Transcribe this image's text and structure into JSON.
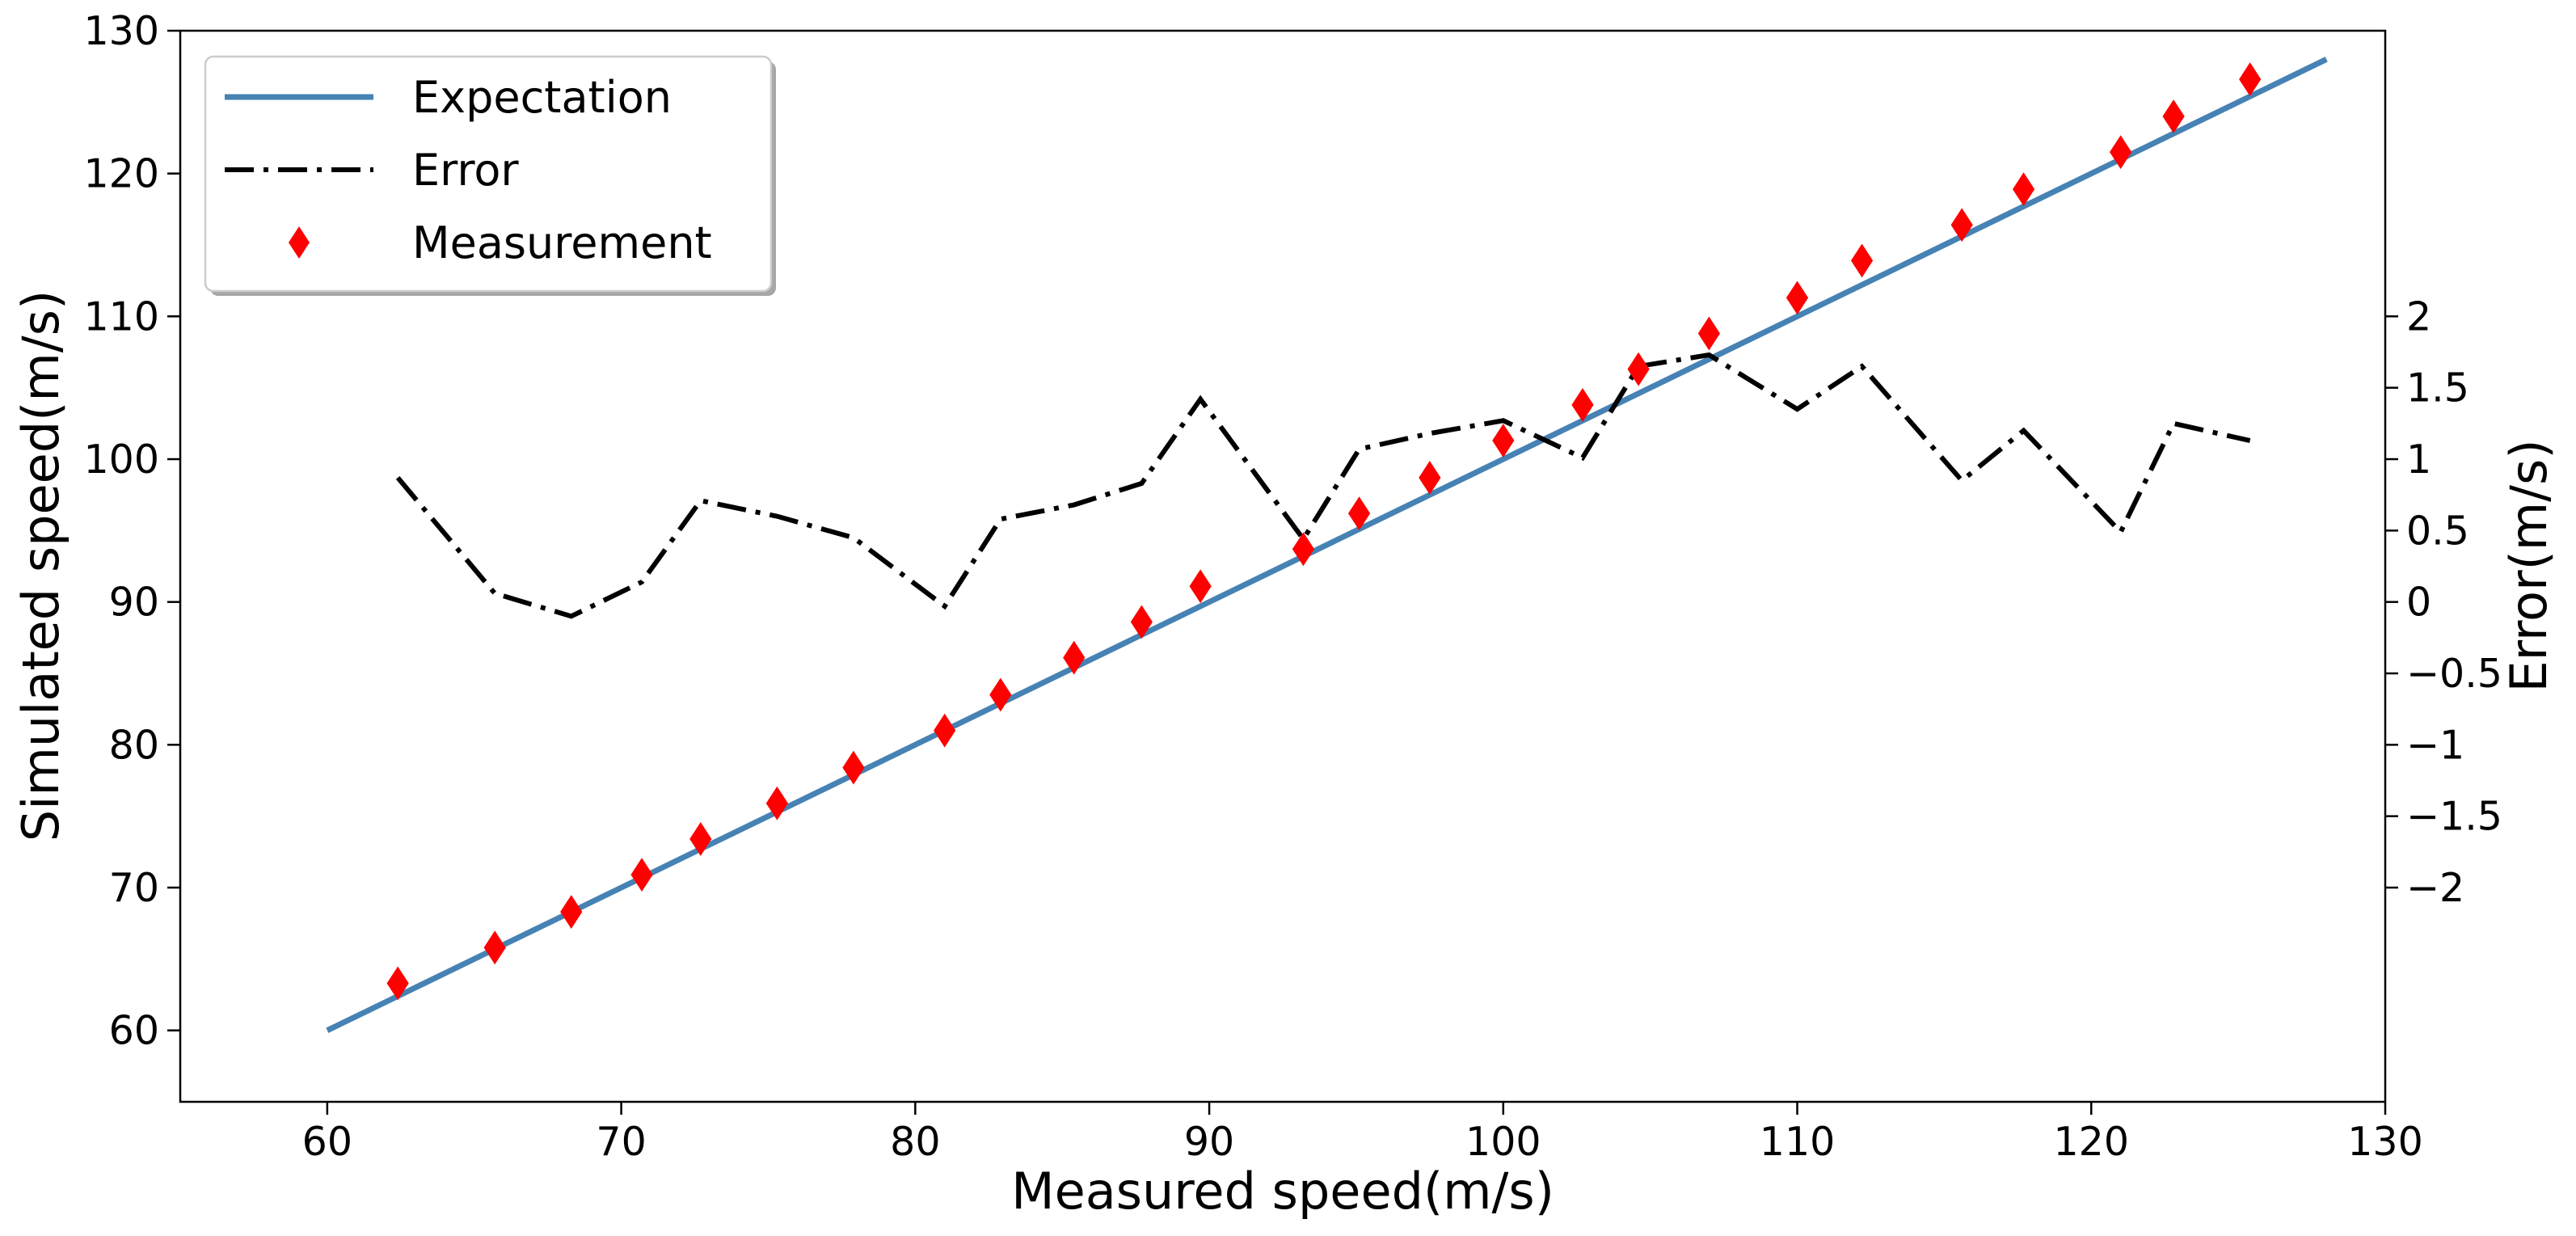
{
  "chart_data": {
    "type": "line",
    "xlabel": "Measured speed(m/s)",
    "ylabel": "Simulated speed(m/s)",
    "y2label": "Error(m/s)",
    "xlim": [
      55,
      130
    ],
    "ylim": [
      55,
      130
    ],
    "y2lim": [
      -3.5,
      4.0
    ],
    "xticks": [
      60,
      70,
      80,
      90,
      100,
      110,
      120,
      130
    ],
    "yticks": [
      60,
      70,
      80,
      90,
      100,
      110,
      120,
      130
    ],
    "y2ticks": [
      -2,
      -1.5,
      -1,
      -0.5,
      0,
      0.5,
      1,
      1.5,
      2
    ],
    "y2tick_labels": [
      "−2",
      "−1.5",
      "−1",
      "−0.5",
      "0",
      "0.5",
      "1",
      "1.5",
      "2"
    ],
    "grid": false,
    "legend_position": "top-left",
    "series": [
      {
        "name": "Expectation",
        "kind": "line",
        "axis": "left",
        "color": "#4682b4",
        "x": [
          60,
          128
        ],
        "y": [
          60,
          128
        ]
      },
      {
        "name": "Error",
        "kind": "dashdot-line",
        "axis": "right",
        "color": "#000000",
        "x": [
          62.4,
          65.7,
          68.3,
          70.7,
          72.7,
          75.3,
          77.9,
          81.0,
          82.9,
          85.4,
          87.7,
          89.7,
          93.2,
          95.1,
          97.5,
          100.0,
          102.7,
          104.6,
          107.0,
          110.0,
          112.2,
          115.6,
          117.7,
          121.0,
          122.8,
          125.4
        ],
        "y": [
          0.87,
          0.06,
          -0.1,
          0.14,
          0.71,
          0.6,
          0.45,
          -0.03,
          0.58,
          0.68,
          0.83,
          1.42,
          0.44,
          1.07,
          1.18,
          1.27,
          1.01,
          1.65,
          1.73,
          1.35,
          1.65,
          0.85,
          1.2,
          0.49,
          1.25,
          1.13
        ]
      },
      {
        "name": "Measurement",
        "kind": "scatter",
        "marker": "diamond",
        "axis": "left",
        "color": "#ff0000",
        "x": [
          62.4,
          65.7,
          68.3,
          70.7,
          72.7,
          75.3,
          77.9,
          81.0,
          82.9,
          85.4,
          87.7,
          89.7,
          93.2,
          95.1,
          97.5,
          100.0,
          102.7,
          104.6,
          107.0,
          110.0,
          112.2,
          115.6,
          117.7,
          121.0,
          122.8,
          125.4
        ],
        "y": [
          63.3,
          65.8,
          68.3,
          70.9,
          73.4,
          75.9,
          78.4,
          81.0,
          83.5,
          86.1,
          88.6,
          91.1,
          93.7,
          96.2,
          98.7,
          101.3,
          103.8,
          106.3,
          108.8,
          111.3,
          113.9,
          116.4,
          118.9,
          121.5,
          124.0,
          126.6
        ]
      }
    ]
  }
}
